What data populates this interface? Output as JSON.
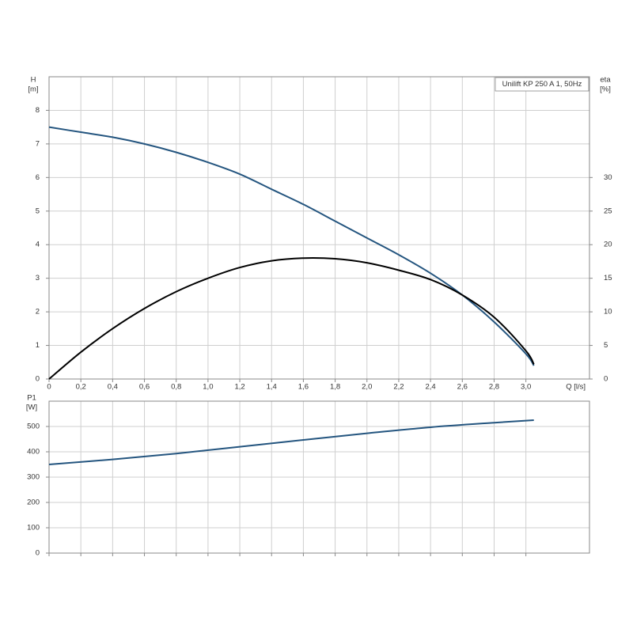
{
  "chart_data": [
    {
      "type": "line",
      "annotation": "Unilift KP 250 A 1, 50Hz",
      "ylabel": "H",
      "yunit": "[m]",
      "y2label": "eta",
      "y2unit": "[%]",
      "xlabel": "Q [l/s]",
      "x": [
        0,
        0.2,
        0.4,
        0.6,
        0.8,
        1.0,
        1.2,
        1.4,
        1.6,
        1.8,
        2.0,
        2.2,
        2.4,
        2.6,
        2.8,
        3.0,
        3.05
      ],
      "series": [
        {
          "color": "#24557f",
          "axis": "y",
          "values": [
            7.5,
            7.35,
            7.2,
            7.0,
            6.75,
            6.45,
            6.1,
            5.65,
            5.2,
            4.7,
            4.2,
            3.7,
            3.15,
            2.5,
            1.7,
            0.75,
            0.4
          ]
        },
        {
          "color": "#000000",
          "axis": "y2",
          "values": [
            0,
            4,
            7.5,
            10.5,
            13,
            15,
            16.6,
            17.6,
            18,
            17.9,
            17.3,
            16.2,
            14.8,
            12.5,
            9.2,
            4.2,
            2.2
          ]
        }
      ],
      "xlim": [
        0,
        3.4
      ],
      "xticks": [
        0,
        {
          "value": 0.2,
          "label": "0,2"
        },
        {
          "value": 0.4,
          "label": "0,4"
        },
        {
          "value": 0.6,
          "label": "0,6"
        },
        {
          "value": 0.8,
          "label": "0,8"
        },
        {
          "value": 1.0,
          "label": "1,0"
        },
        {
          "value": 1.2,
          "label": "1,2"
        },
        {
          "value": 1.4,
          "label": "1,4"
        },
        {
          "value": 1.6,
          "label": "1,6"
        },
        {
          "value": 1.8,
          "label": "1,8"
        },
        {
          "value": 2.0,
          "label": "2,0"
        },
        {
          "value": 2.2,
          "label": "2,2"
        },
        {
          "value": 2.4,
          "label": "2,4"
        },
        {
          "value": 2.6,
          "label": "2,6"
        },
        {
          "value": 2.8,
          "label": "2,8"
        },
        {
          "value": 3.0,
          "label": "3,0"
        }
      ],
      "ylim": [
        0,
        9
      ],
      "yticks": [
        0,
        1,
        2,
        3,
        4,
        5,
        6,
        7,
        8
      ],
      "y2lim": [
        0,
        45
      ],
      "y2ticks": [
        0,
        5,
        10,
        15,
        20,
        25,
        30
      ],
      "grid": true
    },
    {
      "type": "line",
      "ylabel": "P1",
      "yunit": "[W]",
      "x": [
        0,
        0.4,
        0.8,
        1.2,
        1.6,
        2.0,
        2.4,
        2.8,
        3.05
      ],
      "series": [
        {
          "color": "#24557f",
          "values": [
            350,
            370,
            393,
            420,
            447,
            473,
            497,
            515,
            525
          ]
        }
      ],
      "xlim": [
        0,
        3.4
      ],
      "ylim": [
        0,
        600
      ],
      "yticks": [
        0,
        100,
        200,
        300,
        400,
        500
      ],
      "grid": true
    }
  ]
}
